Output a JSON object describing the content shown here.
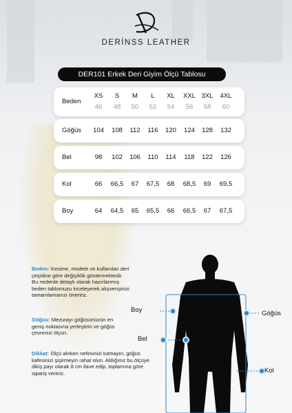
{
  "brand": {
    "name": "DERİNSS LEATHER"
  },
  "table_title": "DER101 Erkek Deri Giyim Ölçü Tablosu",
  "size_table": {
    "label": "Beden",
    "sizes": [
      "XS",
      "S",
      "M",
      "L",
      "XL",
      "XXL",
      "3XL",
      "4XL"
    ],
    "eu_sizes": [
      "46",
      "48",
      "50",
      "52",
      "54",
      "56",
      "58",
      "60"
    ],
    "rows": [
      {
        "label": "Göğüs",
        "values": [
          "104",
          "108",
          "112",
          "116",
          "120",
          "124",
          "128",
          "132"
        ]
      },
      {
        "label": "Bel",
        "values": [
          "98",
          "102",
          "106",
          "110",
          "114",
          "118",
          "122",
          "126"
        ]
      },
      {
        "label": "Kol",
        "values": [
          "66",
          "66,5",
          "67",
          "67,5",
          "68",
          "68,5",
          "69",
          "69,5"
        ]
      },
      {
        "label": "Boy",
        "values": [
          "64",
          "64,5",
          "65",
          "65,5",
          "66",
          "66,5",
          "67",
          "67,5"
        ]
      }
    ]
  },
  "notes": [
    {
      "heading": "Beden:",
      "lines": [
        "Kesime, modele ve kullanılan deri",
        "çeşidine göre değişiklik göstermektedir.",
        "Bu nedenle detaylı olarak hazırlanmış",
        "beden tablomuzu inceleyerek alışverişinizi",
        "tamamlamanızı öneririz."
      ]
    },
    {
      "heading": "Göğüs:",
      "lines": [
        "Mezurayı göğüsünüzün en",
        "geniş noktasına yerleştirin ve göğüs",
        "çevrenizi ölçün."
      ]
    },
    {
      "heading": "Dikkat:",
      "lines": [
        "Ölçü alırken nefesinizi tutmayın, göğüs",
        "kafesinizi şişirmeyin rahat olun. Aldığınız bu ölçüye",
        "dikiş payı olarak 8 cm ilave edip, toplamına göre",
        "sipariş veriniz."
      ]
    }
  ],
  "diagram": {
    "labels": {
      "boy": "Boy",
      "gogus": "Göğüs",
      "bel": "Bel",
      "kol": "Kol"
    },
    "accent": "#2e84c8"
  }
}
